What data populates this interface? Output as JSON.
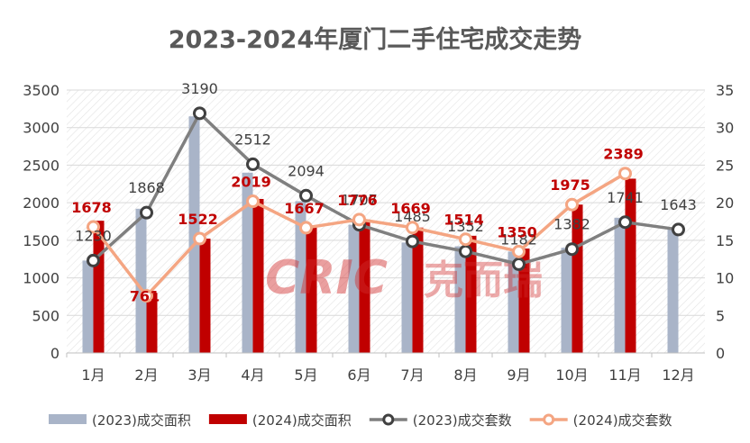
{
  "chart_data": {
    "type": "bar",
    "title": "2023-2024年厦门二手住宅成交走势",
    "categories": [
      "1月",
      "2月",
      "3月",
      "4月",
      "5月",
      "6月",
      "7月",
      "8月",
      "9月",
      "10月",
      "11月",
      "12月"
    ],
    "y_left": {
      "ticks": [
        "0",
        "500",
        "1000",
        "1500",
        "2000",
        "2500",
        "3000",
        "3500"
      ],
      "ylim": [
        0,
        3500
      ]
    },
    "y_right": {
      "ticks": [
        "0",
        "5",
        "10",
        "15",
        "20",
        "25",
        "30",
        "35"
      ],
      "ylim": [
        0,
        35
      ]
    },
    "grid": true,
    "legend_position": "bottom",
    "series": [
      {
        "name": "(2023)成交面积",
        "type": "bar",
        "axis": "left",
        "color": "#a9b4c8",
        "values": [
          1230,
          1920,
          3150,
          2400,
          2020,
          1707,
          1470,
          1420,
          1350,
          1400,
          1800,
          1643
        ]
      },
      {
        "name": "(2024)成交面积",
        "type": "bar",
        "axis": "left",
        "color": "#c00000",
        "values": [
          1760,
          800,
          1522,
          2050,
          1700,
          1776,
          1669,
          1560,
          1390,
          1975,
          2320,
          null
        ]
      },
      {
        "name": "(2023)成交套数",
        "type": "line",
        "axis": "right",
        "color": "#7f7f7f",
        "values": [
          12.3,
          18.68,
          31.9,
          25.12,
          20.94,
          17.07,
          14.85,
          13.52,
          11.82,
          13.82,
          17.41,
          16.43
        ],
        "labels": [
          "1230",
          "1868",
          "3190",
          "2512",
          "2094",
          "1707",
          "1485",
          "1352",
          "1182",
          "1382",
          "1741",
          "1643"
        ]
      },
      {
        "name": "(2024)成交套数",
        "type": "line",
        "axis": "right",
        "color": "#f4a582",
        "values": [
          16.78,
          7.61,
          15.22,
          20.19,
          16.67,
          17.76,
          16.69,
          15.14,
          13.5,
          19.75,
          23.89,
          null
        ],
        "labels": [
          "1678",
          "761",
          "1522",
          "2019",
          "1667",
          "1776",
          "1669",
          "1514",
          "1350",
          "1975",
          "2389",
          ""
        ]
      }
    ]
  },
  "watermark": "CRIC克而瑞"
}
